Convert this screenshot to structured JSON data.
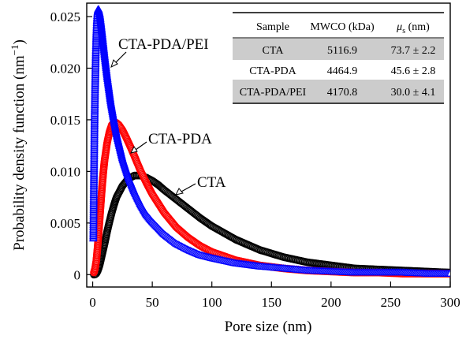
{
  "chart_data": {
    "type": "scatter",
    "xlabel": "Pore size (nm)",
    "ylabel": "Probability density function (nm",
    "ylabel_exponent": "−1",
    "ylabel_close": ")",
    "xlim": [
      -5,
      300
    ],
    "ylim": [
      -0.0012,
      0.0263
    ],
    "xticks": [
      0,
      50,
      100,
      150,
      200,
      250,
      300
    ],
    "xtick_labels": [
      "0",
      "50",
      "100",
      "150",
      "200",
      "250",
      "300"
    ],
    "yticks": [
      0,
      0.005,
      0.01,
      0.015,
      0.02,
      0.025
    ],
    "ytick_labels": [
      "0",
      "0.005",
      "0.010",
      "0.015",
      "0.020",
      "0.025"
    ],
    "grid": false,
    "series": [
      {
        "name": "CTA",
        "color": "#000000",
        "marker": "circle",
        "mean_pore_size": 73.7,
        "sigma": 2.2,
        "peak": {
          "x": 42,
          "y": 0.0096
        },
        "x": [
          1,
          2,
          3,
          4,
          5,
          6,
          7,
          8,
          9,
          10,
          12,
          14,
          16,
          18,
          20,
          25,
          30,
          35,
          40,
          45,
          50,
          55,
          60,
          70,
          80,
          90,
          100,
          120,
          140,
          160,
          180,
          200,
          220,
          240,
          260,
          280,
          300
        ],
        "y": [
          0.0,
          2e-05,
          0.0001,
          0.0003,
          0.0006,
          0.001,
          0.0015,
          0.002,
          0.0025,
          0.003,
          0.0041,
          0.0051,
          0.006,
          0.0068,
          0.0075,
          0.0086,
          0.0093,
          0.0096,
          0.0096,
          0.0094,
          0.0091,
          0.0087,
          0.0082,
          0.0073,
          0.0064,
          0.0055,
          0.0047,
          0.0034,
          0.0024,
          0.0017,
          0.0012,
          0.0009,
          0.0006,
          0.0005,
          0.0004,
          0.0003,
          0.0002
        ]
      },
      {
        "name": "CTA-PDA",
        "color": "#ff0000",
        "marker": "circle",
        "mean_pore_size": 45.6,
        "sigma": 2.8,
        "peak": {
          "x": 20,
          "y": 0.0147
        },
        "x": [
          1,
          2,
          3,
          4,
          5,
          6,
          7,
          8,
          9,
          10,
          12,
          14,
          16,
          18,
          20,
          22,
          25,
          28,
          32,
          36,
          40,
          45,
          50,
          60,
          70,
          80,
          90,
          100,
          120,
          140,
          160,
          180,
          200,
          220,
          240,
          260,
          280,
          300
        ],
        "y": [
          0.0002,
          0.0006,
          0.0013,
          0.0025,
          0.004,
          0.0056,
          0.0072,
          0.0087,
          0.01,
          0.0111,
          0.0127,
          0.0138,
          0.0145,
          0.0147,
          0.0147,
          0.0145,
          0.014,
          0.0133,
          0.0123,
          0.0112,
          0.0101,
          0.0089,
          0.0078,
          0.006,
          0.0046,
          0.0036,
          0.0028,
          0.0022,
          0.0014,
          0.0009,
          0.0006,
          0.0004,
          0.0003,
          0.0002,
          0.0002,
          0.0001,
          0.0001,
          0.0001
        ]
      },
      {
        "name": "CTA-PDA/PEI",
        "color": "#0000ff",
        "marker": "triangle",
        "mean_pore_size": 30.0,
        "sigma": 4.1,
        "peak": {
          "x": 5,
          "y": 0.0257
        },
        "x": [
          0.5,
          1,
          1.5,
          2,
          2.5,
          3,
          3.5,
          4,
          4.5,
          5,
          6,
          7,
          8,
          10,
          12,
          15,
          18,
          20,
          25,
          30,
          35,
          40,
          45,
          50,
          60,
          70,
          80,
          90,
          100,
          120,
          140,
          160,
          180,
          200,
          220,
          240,
          260,
          280,
          300
        ],
        "y": [
          0.0035,
          0.0088,
          0.014,
          0.018,
          0.021,
          0.0232,
          0.0246,
          0.0254,
          0.0257,
          0.0257,
          0.0252,
          0.0243,
          0.0233,
          0.0212,
          0.0193,
          0.0168,
          0.0148,
          0.0136,
          0.0112,
          0.0094,
          0.008,
          0.0068,
          0.0058,
          0.0051,
          0.0039,
          0.003,
          0.0024,
          0.0019,
          0.0016,
          0.0011,
          0.0008,
          0.0006,
          0.0004,
          0.0003,
          0.0002,
          0.0002,
          0.0002,
          0.0001,
          0.0001
        ]
      }
    ],
    "annotations": [
      {
        "text": "CTA-PDA/PEI",
        "series": "CTA-PDA/PEI"
      },
      {
        "text": "CTA-PDA",
        "series": "CTA-PDA"
      },
      {
        "text": "CTA",
        "series": "CTA"
      }
    ],
    "inset_table": {
      "headers": [
        "Sample",
        "MWCO (kDa)",
        "μ",
        "s",
        " (nm)"
      ],
      "rows": [
        {
          "sample": "CTA",
          "mwco": "5116.9",
          "mu": "73.7 ± 2.2",
          "shaded": true
        },
        {
          "sample": "CTA-PDA",
          "mwco": "4464.9",
          "mu": "45.6 ± 2.8",
          "shaded": false
        },
        {
          "sample": "CTA-PDA/PEI",
          "mwco": "4170.8",
          "mu": "30.0 ± 4.1",
          "shaded": true
        }
      ]
    }
  }
}
